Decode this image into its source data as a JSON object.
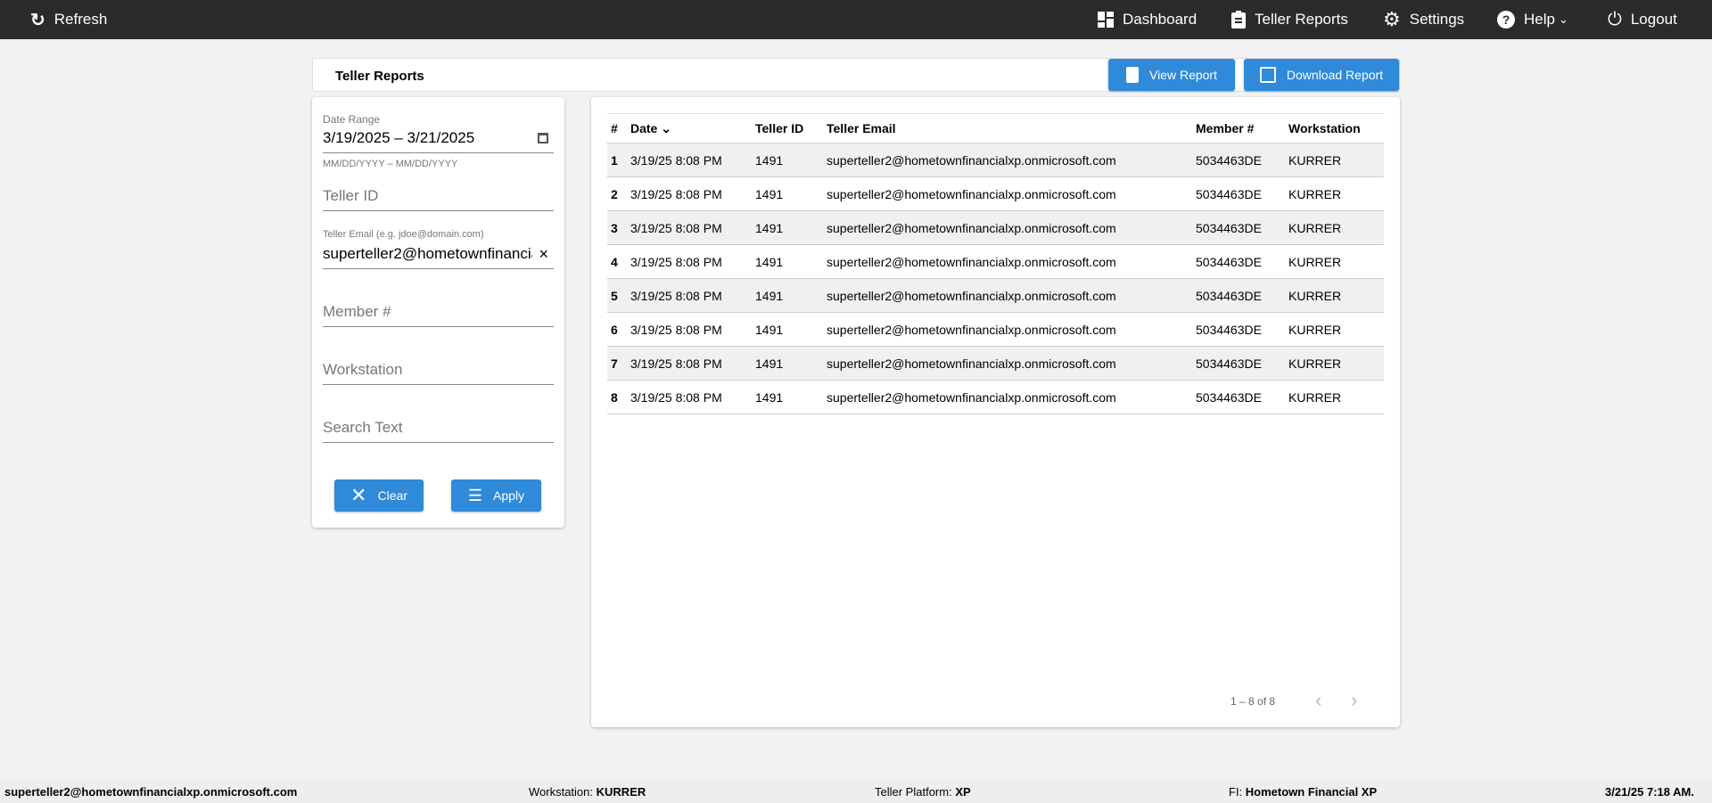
{
  "nav": {
    "refresh": "Refresh",
    "dashboard": "Dashboard",
    "teller_reports": "Teller Reports",
    "settings": "Settings",
    "help": "Help",
    "logout": "Logout"
  },
  "header": {
    "title": "Teller Reports",
    "view_report": "View Report",
    "download_report": "Download Report"
  },
  "filters": {
    "date_range_label": "Date Range",
    "date_range_value": "3/19/2025 – 3/21/2025",
    "date_hint": "MM/DD/YYYY – MM/DD/YYYY",
    "teller_id_placeholder": "Teller ID",
    "teller_email_label": "Teller Email (e.g. jdoe@domain.com)",
    "teller_email_value": "superteller2@hometownfinancialxp.onmicrosoft.com",
    "member_placeholder": "Member #",
    "workstation_placeholder": "Workstation",
    "search_placeholder": "Search Text",
    "clear": "Clear",
    "apply": "Apply"
  },
  "table": {
    "columns": [
      "#",
      "Date",
      "Teller ID",
      "Teller Email",
      "Member #",
      "Workstation"
    ],
    "rows": [
      [
        "1",
        "3/19/25 8:08 PM",
        "1491",
        "superteller2@hometownfinancialxp.onmicrosoft.com",
        "5034463DE",
        "KURRER"
      ],
      [
        "2",
        "3/19/25 8:08 PM",
        "1491",
        "superteller2@hometownfinancialxp.onmicrosoft.com",
        "5034463DE",
        "KURRER"
      ],
      [
        "3",
        "3/19/25 8:08 PM",
        "1491",
        "superteller2@hometownfinancialxp.onmicrosoft.com",
        "5034463DE",
        "KURRER"
      ],
      [
        "4",
        "3/19/25 8:08 PM",
        "1491",
        "superteller2@hometownfinancialxp.onmicrosoft.com",
        "5034463DE",
        "KURRER"
      ],
      [
        "5",
        "3/19/25 8:08 PM",
        "1491",
        "superteller2@hometownfinancialxp.onmicrosoft.com",
        "5034463DE",
        "KURRER"
      ],
      [
        "6",
        "3/19/25 8:08 PM",
        "1491",
        "superteller2@hometownfinancialxp.onmicrosoft.com",
        "5034463DE",
        "KURRER"
      ],
      [
        "7",
        "3/19/25 8:08 PM",
        "1491",
        "superteller2@hometownfinancialxp.onmicrosoft.com",
        "5034463DE",
        "KURRER"
      ],
      [
        "8",
        "3/19/25 8:08 PM",
        "1491",
        "superteller2@hometownfinancialxp.onmicrosoft.com",
        "5034463DE",
        "KURRER"
      ]
    ],
    "paginator": "1 – 8 of 8"
  },
  "footer": {
    "user": "superteller2@hometownfinancialxp.onmicrosoft.com",
    "workstation_label": "Workstation:",
    "workstation": "KURRER",
    "platform_label": "Teller Platform:",
    "platform": "XP",
    "fi_label": "FI:",
    "fi": "Hometown Financial XP",
    "datetime": "3/21/25 7:18 AM."
  },
  "colors": {
    "accent": "#2f8ad9",
    "nav_bg": "#2b2b2b"
  }
}
